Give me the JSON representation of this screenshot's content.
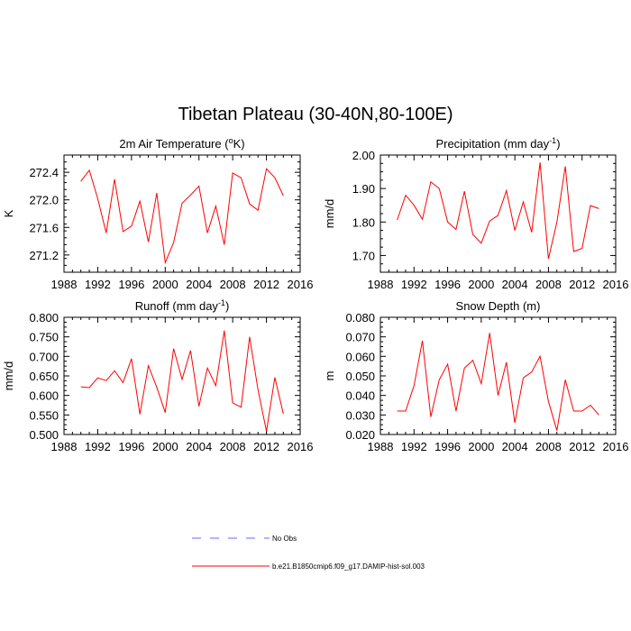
{
  "page": {
    "title": "Tibetan Plateau (30-40N,80-100E)"
  },
  "legend": {
    "entries": [
      {
        "label": "No Obs",
        "color": "#6a6aff",
        "dashed": true
      },
      {
        "label": "b.e21.B1850cmip6.f09_g17.DAMIP-hist-sol.003",
        "color": "#ff0000",
        "dashed": false
      }
    ]
  },
  "chart_data": [
    {
      "type": "line",
      "title": "2m Air Temperature (°K)",
      "title_parts": [
        "2m Air Temperature (",
        "o",
        "K)"
      ],
      "ylabel": "K",
      "xlim": [
        1988,
        2016
      ],
      "xticks": [
        1988,
        1992,
        1996,
        2000,
        2004,
        2008,
        2012,
        2016
      ],
      "ylim": [
        270.95,
        272.65
      ],
      "yticks": [
        271.2,
        271.6,
        272.0,
        272.4
      ],
      "ytick_labels": [
        "271.2",
        "271.6",
        "272.0",
        "272.4"
      ],
      "series": [
        {
          "color": "#ff0000",
          "x": [
            1990,
            1991,
            1992,
            1993,
            1994,
            1995,
            1996,
            1997,
            1998,
            1999,
            2000,
            2001,
            2002,
            2003,
            2004,
            2005,
            2006,
            2007,
            2008,
            2009,
            2010,
            2011,
            2012,
            2013,
            2014
          ],
          "values": [
            272.27,
            272.43,
            272.02,
            271.52,
            272.3,
            271.54,
            271.62,
            271.98,
            271.39,
            272.1,
            271.09,
            271.38,
            271.95,
            272.07,
            272.2,
            271.52,
            271.91,
            271.35,
            272.39,
            272.32,
            271.94,
            271.85,
            272.45,
            272.32,
            272.06
          ]
        }
      ]
    },
    {
      "type": "line",
      "title": "Precipitation (mm day⁻¹)",
      "title_parts": [
        "Precipitation (mm day",
        "-1",
        ")"
      ],
      "ylabel": "mm/d",
      "xlim": [
        1988,
        2016
      ],
      "xticks": [
        1988,
        1992,
        1996,
        2000,
        2004,
        2008,
        2012,
        2016
      ],
      "ylim": [
        1.65,
        2.0
      ],
      "yticks": [
        1.7,
        1.8,
        1.9,
        2.0
      ],
      "ytick_labels": [
        "1.70",
        "1.80",
        "1.90",
        "2.00"
      ],
      "series": [
        {
          "color": "#ff0000",
          "x": [
            1990,
            1991,
            1992,
            1993,
            1994,
            1995,
            1996,
            1997,
            1998,
            1999,
            2000,
            2001,
            2002,
            2003,
            2004,
            2005,
            2006,
            2007,
            2008,
            2009,
            2010,
            2011,
            2012,
            2013,
            2014
          ],
          "values": [
            1.806,
            1.88,
            1.85,
            1.808,
            1.92,
            1.9,
            1.8,
            1.778,
            1.892,
            1.763,
            1.737,
            1.803,
            1.82,
            1.894,
            1.775,
            1.86,
            1.769,
            1.978,
            1.69,
            1.8,
            1.966,
            1.712,
            1.721,
            1.849,
            1.84
          ]
        }
      ]
    },
    {
      "type": "line",
      "title": "Runoff (mm day⁻¹)",
      "title_parts": [
        "Runoff (mm day",
        "-1",
        ")"
      ],
      "ylabel": "mm/d",
      "xlim": [
        1988,
        2016
      ],
      "xticks": [
        1988,
        1992,
        1996,
        2000,
        2004,
        2008,
        2012,
        2016
      ],
      "ylim": [
        0.5,
        0.8
      ],
      "yticks": [
        0.5,
        0.55,
        0.6,
        0.65,
        0.7,
        0.75,
        0.8
      ],
      "ytick_labels": [
        "0.500",
        "0.550",
        "0.600",
        "0.650",
        "0.700",
        "0.750",
        "0.800"
      ],
      "series": [
        {
          "color": "#ff0000",
          "x": [
            1990,
            1991,
            1992,
            1993,
            1994,
            1995,
            1996,
            1997,
            1998,
            1999,
            2000,
            2001,
            2002,
            2003,
            2004,
            2005,
            2006,
            2007,
            2008,
            2009,
            2010,
            2011,
            2012,
            2013,
            2014
          ],
          "values": [
            0.622,
            0.62,
            0.645,
            0.638,
            0.663,
            0.633,
            0.694,
            0.552,
            0.676,
            0.621,
            0.556,
            0.72,
            0.641,
            0.715,
            0.572,
            0.67,
            0.625,
            0.766,
            0.581,
            0.57,
            0.75,
            0.615,
            0.508,
            0.646,
            0.553
          ]
        }
      ]
    },
    {
      "type": "line",
      "title": "Snow Depth (m)",
      "title_parts": [
        "Snow Depth (m)"
      ],
      "ylabel": "m",
      "xlim": [
        1988,
        2016
      ],
      "xticks": [
        1988,
        1992,
        1996,
        2000,
        2004,
        2008,
        2012,
        2016
      ],
      "ylim": [
        0.02,
        0.08
      ],
      "yticks": [
        0.02,
        0.03,
        0.04,
        0.05,
        0.06,
        0.07,
        0.08
      ],
      "ytick_labels": [
        "0.020",
        "0.030",
        "0.040",
        "0.050",
        "0.060",
        "0.070",
        "0.080"
      ],
      "series": [
        {
          "color": "#ff0000",
          "x": [
            1990,
            1991,
            1992,
            1993,
            1994,
            1995,
            1996,
            1997,
            1998,
            1999,
            2000,
            2001,
            2002,
            2003,
            2004,
            2005,
            2006,
            2007,
            2008,
            2009,
            2010,
            2011,
            2012,
            2013,
            2014
          ],
          "values": [
            0.032,
            0.032,
            0.045,
            0.068,
            0.029,
            0.048,
            0.056,
            0.032,
            0.054,
            0.058,
            0.046,
            0.072,
            0.04,
            0.057,
            0.026,
            0.049,
            0.052,
            0.06,
            0.037,
            0.022,
            0.048,
            0.032,
            0.032,
            0.035,
            0.03
          ]
        }
      ]
    }
  ]
}
